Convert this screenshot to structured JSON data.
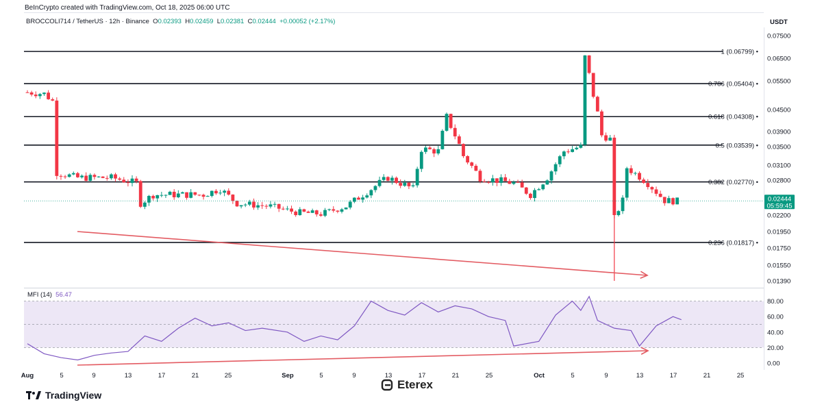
{
  "header": {
    "source_line": "BeInCrypto created with TradingView.com, Oct 18, 2025 06:00 UTC",
    "symbol": "BROCCOLI714 / TetherUS · 12h · Binance",
    "o_key": "O",
    "o_val": "0.02393",
    "h_key": "H",
    "h_val": "0.02459",
    "l_key": "L",
    "l_val": "0.02381",
    "c_key": "C",
    "c_val": "0.02444",
    "change": "+0.00052 (+2.17%)"
  },
  "currency": "USDT",
  "price_badge": {
    "price": "0.02444",
    "countdown": "05:59:45"
  },
  "mfi": {
    "label": "MFI (14)",
    "value": "56.47"
  },
  "brand": {
    "tradingview": "TradingView",
    "eterex": "Eterex"
  },
  "colors": {
    "up": "#089981",
    "down": "#f23645",
    "fib": "#131722",
    "arrow": "#e35b62",
    "mfi_line": "#7e57c2",
    "mfi_band": "#ede7f6",
    "badge": "#089981"
  },
  "chart_data": [
    {
      "type": "candlestick",
      "title": "BROCCOLI714 / TetherUS · 12h · Binance",
      "y_axis": {
        "ticks": [
          "0.07500",
          "0.06500",
          "0.05500",
          "0.04500",
          "0.03900",
          "0.03500",
          "0.03100",
          "0.02800",
          "0.02200",
          "0.01950",
          "0.01750",
          "0.01550",
          "0.01390"
        ]
      },
      "x_axis": {
        "ticks": [
          "Aug",
          "5",
          "9",
          "13",
          "17",
          "21",
          "25",
          "Sep",
          "5",
          "9",
          "13",
          "17",
          "21",
          "25",
          "Oct",
          "5",
          "9",
          "13",
          "17",
          "21",
          "25"
        ]
      },
      "fib_levels": [
        {
          "ratio": 1,
          "label": "1 (0.06799)",
          "price": 0.06799
        },
        {
          "ratio": 0.786,
          "label": "0.786 (0.05404)",
          "price": 0.05404
        },
        {
          "ratio": 0.618,
          "label": "0.618 (0.04308)",
          "price": 0.04308
        },
        {
          "ratio": 0.5,
          "label": "0.5 (0.03539)",
          "price": 0.03539
        },
        {
          "ratio": 0.382,
          "label": "0.382 (0.02770)",
          "price": 0.0277
        },
        {
          "ratio": 0.236,
          "label": "0.236 (0.01817)",
          "price": 0.01817
        }
      ],
      "close_path": [
        [
          "Aug 1",
          0.051
        ],
        [
          "Aug 3",
          0.0505
        ],
        [
          "Aug 4",
          0.048
        ],
        [
          "Aug 4.5",
          0.0295
        ],
        [
          "Aug 7",
          0.0285
        ],
        [
          "Aug 11",
          0.0285
        ],
        [
          "Aug 14",
          0.0275
        ],
        [
          "Aug 14.5",
          0.024
        ],
        [
          "Aug 16",
          0.0255
        ],
        [
          "Aug 22",
          0.0255
        ],
        [
          "Aug 24",
          0.0265
        ],
        [
          "Aug 26",
          0.024
        ],
        [
          "Aug 30",
          0.0235
        ],
        [
          "Sep 2",
          0.0225
        ],
        [
          "Sep 5",
          0.0222
        ],
        [
          "Sep 8",
          0.0235
        ],
        [
          "Sep 10",
          0.0255
        ],
        [
          "Sep 13",
          0.0285
        ],
        [
          "Sep 16",
          0.0265
        ],
        [
          "Sep 17",
          0.0345
        ],
        [
          "Sep 19",
          0.034
        ],
        [
          "Sep 20",
          0.043
        ],
        [
          "Sep 22",
          0.033
        ],
        [
          "Sep 24",
          0.0285
        ],
        [
          "Sep 28",
          0.0275
        ],
        [
          "Sep 30",
          0.0255
        ],
        [
          "Oct 2",
          0.0285
        ],
        [
          "Oct 4",
          0.034
        ],
        [
          "Oct 6",
          0.035
        ],
        [
          "Oct 6.5",
          0.0655
        ],
        [
          "Oct 7.5",
          0.05
        ],
        [
          "Oct 8.5",
          0.038
        ],
        [
          "Oct 9.5",
          0.037
        ],
        [
          "Oct 10",
          0.0215
        ],
        [
          "Oct 11",
          0.0245
        ],
        [
          "Oct 11.5",
          0.0305
        ],
        [
          "Oct 14",
          0.0275
        ],
        [
          "Oct 16",
          0.0245
        ],
        [
          "Oct 17.5",
          0.0244
        ]
      ],
      "wicks": [
        {
          "date": "Oct 10",
          "low": 0.0139
        }
      ],
      "annotation": "descending red arrow from ~0.0195 (Aug 6) to ~0.0138 (Oct 13)"
    },
    {
      "type": "line",
      "title": "MFI (14)",
      "y_axis": {
        "ticks": [
          "80.00",
          "60.00",
          "40.00",
          "20.00",
          "0.00"
        ]
      },
      "band": [
        20,
        80
      ],
      "values": [
        [
          "Aug 1",
          25
        ],
        [
          "Aug 3",
          12
        ],
        [
          "Aug 5",
          7
        ],
        [
          "Aug 7",
          4
        ],
        [
          "Aug 9",
          10
        ],
        [
          "Aug 11",
          13
        ],
        [
          "Aug 13",
          15
        ],
        [
          "Aug 15",
          35
        ],
        [
          "Aug 17",
          28
        ],
        [
          "Aug 19",
          45
        ],
        [
          "Aug 21",
          58
        ],
        [
          "Aug 23",
          48
        ],
        [
          "Aug 25",
          52
        ],
        [
          "Aug 27",
          42
        ],
        [
          "Aug 29",
          45
        ],
        [
          "Sep 1",
          40
        ],
        [
          "Sep 3",
          28
        ],
        [
          "Sep 5",
          35
        ],
        [
          "Sep 7",
          30
        ],
        [
          "Sep 9",
          48
        ],
        [
          "Sep 11",
          80
        ],
        [
          "Sep 13",
          68
        ],
        [
          "Sep 15",
          62
        ],
        [
          "Sep 17",
          78
        ],
        [
          "Sep 19",
          66
        ],
        [
          "Sep 21",
          74
        ],
        [
          "Sep 23",
          70
        ],
        [
          "Sep 25",
          60
        ],
        [
          "Sep 27",
          55
        ],
        [
          "Sep 28",
          22
        ],
        [
          "Oct 1",
          28
        ],
        [
          "Oct 3",
          62
        ],
        [
          "Oct 5",
          80
        ],
        [
          "Oct 6",
          68
        ],
        [
          "Oct 7",
          86
        ],
        [
          "Oct 8",
          55
        ],
        [
          "Oct 10",
          45
        ],
        [
          "Oct 12",
          42
        ],
        [
          "Oct 13",
          22
        ],
        [
          "Oct 15",
          48
        ],
        [
          "Oct 17",
          60
        ],
        [
          "Oct 18",
          56
        ]
      ],
      "annotation": "ascending red arrow from ~2 (Aug 6) to ~16 (Oct 13)"
    }
  ]
}
